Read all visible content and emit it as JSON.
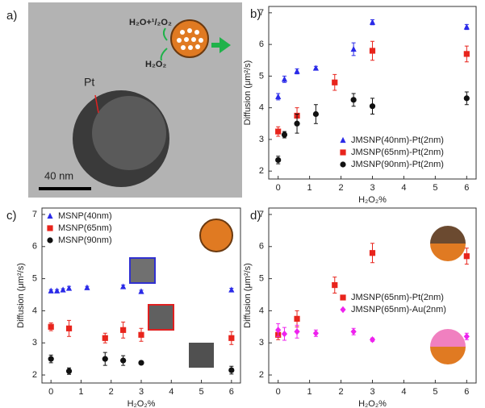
{
  "image_panel": {
    "label": "a)",
    "reaction_product": "H₂O+¹/₂O₂",
    "reactant": "H₂O₂",
    "particle_label": "Pt",
    "scale_bar": "40 nm"
  },
  "chart_data": [
    {
      "type": "scatter",
      "panel_label": "b)",
      "x_label": "H₂O₂%",
      "y_label": "Diffusion (μm²/s)",
      "xlim": [
        -0.3,
        6.3
      ],
      "ylim": [
        1.75,
        7.2
      ],
      "xticks": [
        0,
        1,
        2,
        3,
        4,
        5,
        6
      ],
      "yticks": [
        2,
        3,
        4,
        5,
        6,
        7
      ],
      "legend": "lower right",
      "series": [
        {
          "name": "JMSNP(40nm)-Pt(2nm)",
          "color": "#2a2ae8",
          "marker": "triangle",
          "x": [
            0,
            0.2,
            0.6,
            1.2,
            2.4,
            3,
            6
          ],
          "values": [
            4.35,
            4.9,
            5.15,
            5.25,
            5.85,
            6.7,
            6.55
          ],
          "errors": [
            0.1,
            0.1,
            0.08,
            0.06,
            0.2,
            0.08,
            0.08
          ]
        },
        {
          "name": "JMSNP(65nm)-Pt(2nm)",
          "color": "#e8241c",
          "marker": "square",
          "x": [
            0,
            0.6,
            1.8,
            3,
            6
          ],
          "values": [
            3.25,
            3.75,
            4.8,
            5.8,
            5.7
          ],
          "errors": [
            0.15,
            0.25,
            0.25,
            0.3,
            0.25
          ]
        },
        {
          "name": "JMSNP(90nm)-Pt(2nm)",
          "color": "#111111",
          "marker": "circle",
          "x": [
            0,
            0.2,
            0.6,
            1.2,
            2.4,
            3,
            6
          ],
          "values": [
            2.35,
            3.15,
            3.5,
            3.8,
            4.25,
            4.05,
            4.3
          ],
          "errors": [
            0.12,
            0.1,
            0.3,
            0.3,
            0.2,
            0.25,
            0.2
          ]
        }
      ]
    },
    {
      "type": "scatter",
      "panel_label": "c)",
      "x_label": "H₂O₂%",
      "y_label": "Diffusion (μm²/s)",
      "xlim": [
        -0.3,
        6.3
      ],
      "ylim": [
        1.75,
        7.2
      ],
      "xticks": [
        0,
        1,
        2,
        3,
        4,
        5,
        6
      ],
      "yticks": [
        2,
        3,
        4,
        5,
        6,
        7
      ],
      "legend": "upper left",
      "series": [
        {
          "name": "MSNP(40nm)",
          "color": "#2a2ae8",
          "marker": "triangle",
          "x": [
            0,
            0.2,
            0.4,
            0.6,
            1.2,
            2.4,
            3,
            6
          ],
          "values": [
            4.62,
            4.62,
            4.65,
            4.7,
            4.72,
            4.75,
            4.6,
            4.65
          ],
          "errors": [
            0.04,
            0.04,
            0.04,
            0.06,
            0.04,
            0.05,
            0.04,
            0.05
          ]
        },
        {
          "name": "MSNP(65nm)",
          "color": "#e8241c",
          "marker": "square",
          "x": [
            0,
            0.6,
            1.8,
            2.4,
            3,
            6
          ],
          "values": [
            3.5,
            3.45,
            3.15,
            3.4,
            3.25,
            3.15
          ],
          "errors": [
            0.12,
            0.25,
            0.15,
            0.25,
            0.2,
            0.2
          ]
        },
        {
          "name": "MSNP(90nm)",
          "color": "#111111",
          "marker": "circle",
          "x": [
            0,
            0.6,
            1.8,
            2.4,
            3,
            6
          ],
          "values": [
            2.5,
            2.12,
            2.5,
            2.45,
            2.38,
            2.15
          ],
          "errors": [
            0.12,
            0.1,
            0.2,
            0.15,
            0.05,
            0.12
          ]
        }
      ]
    },
    {
      "type": "scatter",
      "panel_label": "d)",
      "x_label": "H₂O₂%",
      "y_label": "Diffusion (μm²/s)",
      "xlim": [
        -0.3,
        6.3
      ],
      "ylim": [
        1.75,
        7.2
      ],
      "xticks": [
        0,
        1,
        2,
        3,
        4,
        5,
        6
      ],
      "yticks": [
        2,
        3,
        4,
        5,
        6,
        7
      ],
      "legend": "center right",
      "series": [
        {
          "name": "JMSNP(65nm)-Pt(2nm)",
          "color": "#e8241c",
          "marker": "square",
          "x": [
            0,
            0.6,
            1.8,
            3,
            6
          ],
          "values": [
            3.25,
            3.75,
            4.8,
            5.8,
            5.7
          ],
          "errors": [
            0.15,
            0.25,
            0.25,
            0.3,
            0.25
          ]
        },
        {
          "name": "JMSNP(65nm)-Au(2nm)",
          "color": "#ee22ee",
          "marker": "diamond",
          "x": [
            0,
            0.2,
            0.6,
            1.2,
            2.4,
            3,
            6
          ],
          "values": [
            3.4,
            3.28,
            3.35,
            3.3,
            3.35,
            3.1,
            3.2
          ],
          "errors": [
            0.2,
            0.2,
            0.2,
            0.1,
            0.1,
            0.05,
            0.1
          ]
        }
      ]
    }
  ]
}
